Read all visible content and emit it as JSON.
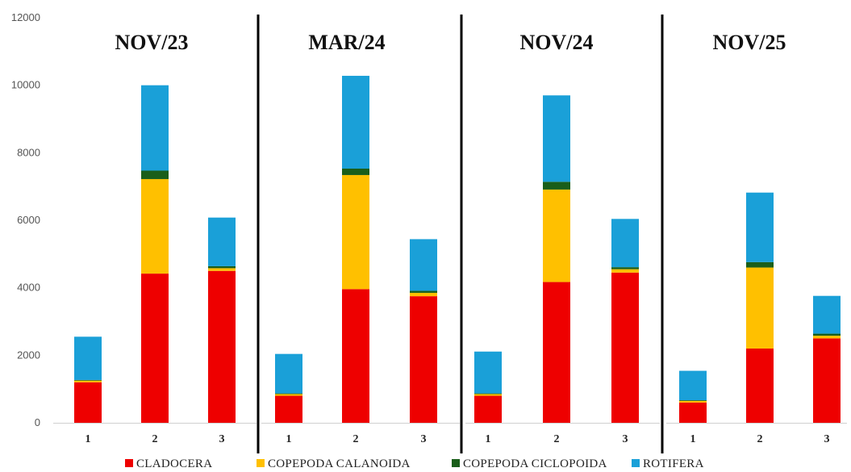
{
  "chart_data": {
    "type": "bar",
    "stacked": true,
    "ylim": [
      0,
      12000
    ],
    "yticks": [
      "0",
      "2000",
      "4000",
      "6000",
      "8000",
      "10000",
      "12000"
    ],
    "grid": false,
    "legend_position": "bottom",
    "series": [
      {
        "name": "CLADOCERA",
        "color": "#ee0000"
      },
      {
        "name": "COPEPODA CALANOIDA",
        "color": "#ffc000"
      },
      {
        "name": "COPEPODA CICLOPOIDA",
        "color": "#1a5e1a"
      },
      {
        "name": "ROTIFERA",
        "color": "#1aa0d8"
      }
    ],
    "panels": [
      {
        "title": "NOV/23",
        "categories": [
          "1",
          "2",
          "3"
        ],
        "values": {
          "CLADOCERA": [
            1200,
            4420,
            4500
          ],
          "COPEPODA CALANOIDA": [
            50,
            2800,
            80
          ],
          "COPEPODA CICLOPOIDA": [
            20,
            250,
            60
          ],
          "ROTIFERA": [
            1280,
            2530,
            1440
          ]
        }
      },
      {
        "title": "MAR/24",
        "categories": [
          "1",
          "2",
          "3"
        ],
        "values": {
          "CLADOCERA": [
            800,
            3960,
            3750
          ],
          "COPEPODA CALANOIDA": [
            50,
            3380,
            100
          ],
          "COPEPODA CICLOPOIDA": [
            20,
            190,
            60
          ],
          "ROTIFERA": [
            1170,
            2750,
            1530
          ]
        }
      },
      {
        "title": "NOV/24",
        "categories": [
          "1",
          "2",
          "3"
        ],
        "values": {
          "CLADOCERA": [
            800,
            4170,
            4450
          ],
          "COPEPODA CALANOIDA": [
            50,
            2740,
            100
          ],
          "COPEPODA CICLOPOIDA": [
            20,
            230,
            60
          ],
          "ROTIFERA": [
            1240,
            2560,
            1430
          ]
        }
      },
      {
        "title": "NOV/25",
        "categories": [
          "1",
          "2",
          "3"
        ],
        "values": {
          "CLADOCERA": [
            600,
            2200,
            2500
          ],
          "COPEPODA CALANOIDA": [
            50,
            2400,
            80
          ],
          "COPEPODA CICLOPOIDA": [
            20,
            160,
            60
          ],
          "ROTIFERA": [
            870,
            2060,
            1120
          ]
        }
      }
    ]
  }
}
